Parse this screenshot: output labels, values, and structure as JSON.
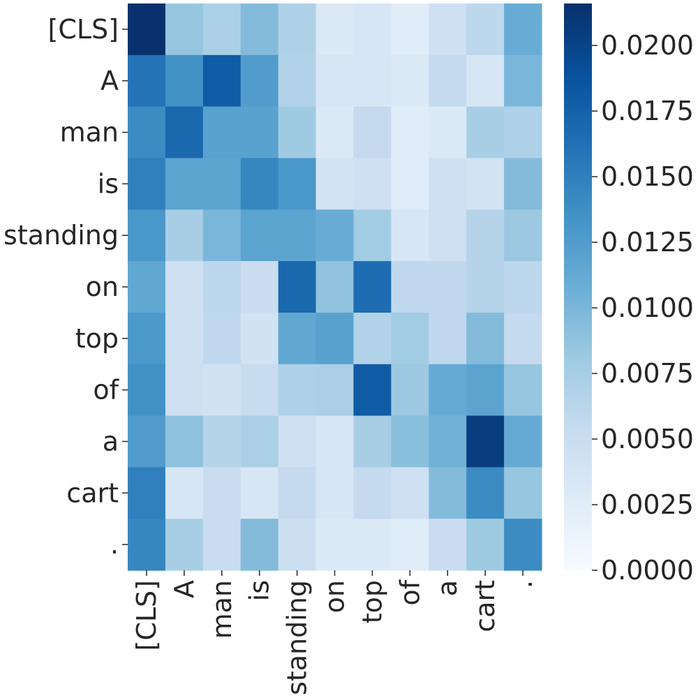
{
  "chart_data": {
    "type": "heatmap",
    "x_labels": [
      "[CLS]",
      "A",
      "man",
      "is",
      "standing",
      "on",
      "top",
      "of",
      "a",
      "cart",
      "."
    ],
    "y_labels": [
      "[CLS]",
      "A",
      "man",
      "is",
      "standing",
      "on",
      "top",
      "of",
      "a",
      "cart",
      "."
    ],
    "values": [
      [
        0.0215,
        0.0085,
        0.0072,
        0.0095,
        0.007,
        0.003,
        0.0035,
        0.0025,
        0.0045,
        0.006,
        0.011
      ],
      [
        0.016,
        0.0135,
        0.018,
        0.0125,
        0.0068,
        0.0035,
        0.0035,
        0.003,
        0.0055,
        0.0035,
        0.01
      ],
      [
        0.014,
        0.017,
        0.012,
        0.012,
        0.008,
        0.003,
        0.0055,
        0.0025,
        0.003,
        0.0075,
        0.007
      ],
      [
        0.015,
        0.0118,
        0.0118,
        0.0145,
        0.013,
        0.004,
        0.0045,
        0.0025,
        0.0045,
        0.004,
        0.0095
      ],
      [
        0.013,
        0.0075,
        0.01,
        0.0118,
        0.0118,
        0.011,
        0.0078,
        0.0035,
        0.0045,
        0.0065,
        0.0082
      ],
      [
        0.0115,
        0.0045,
        0.006,
        0.005,
        0.017,
        0.0088,
        0.0165,
        0.0058,
        0.0058,
        0.0065,
        0.006
      ],
      [
        0.0128,
        0.0045,
        0.0058,
        0.0042,
        0.0115,
        0.012,
        0.0068,
        0.0078,
        0.0058,
        0.0095,
        0.0055
      ],
      [
        0.0135,
        0.0045,
        0.0042,
        0.0052,
        0.007,
        0.0072,
        0.018,
        0.0082,
        0.0112,
        0.0118,
        0.0085
      ],
      [
        0.0125,
        0.009,
        0.0065,
        0.0072,
        0.0045,
        0.0035,
        0.0075,
        0.0092,
        0.0105,
        0.0205,
        0.0112
      ],
      [
        0.015,
        0.0035,
        0.005,
        0.0035,
        0.0055,
        0.0035,
        0.0055,
        0.0045,
        0.0095,
        0.014,
        0.0085
      ],
      [
        0.0145,
        0.0075,
        0.005,
        0.0095,
        0.0048,
        0.003,
        0.003,
        0.0025,
        0.005,
        0.008,
        0.014
      ]
    ],
    "colorbar": {
      "min": 0.0,
      "max": 0.0216,
      "ticks": [
        0.0,
        0.0025,
        0.005,
        0.0075,
        0.01,
        0.0125,
        0.015,
        0.0175,
        0.02
      ],
      "tick_labels": [
        "0.0000",
        "0.0025",
        "0.0050",
        "0.0075",
        "0.0100",
        "0.0125",
        "0.0150",
        "0.0175",
        "0.0200"
      ]
    },
    "colormap": [
      "#f7fbff",
      "#deebf7",
      "#c6dbef",
      "#9ecae1",
      "#6baed6",
      "#4292c6",
      "#2171b5",
      "#08519c",
      "#08306b"
    ],
    "title": "",
    "xlabel": "",
    "ylabel": "",
    "grid": false
  }
}
